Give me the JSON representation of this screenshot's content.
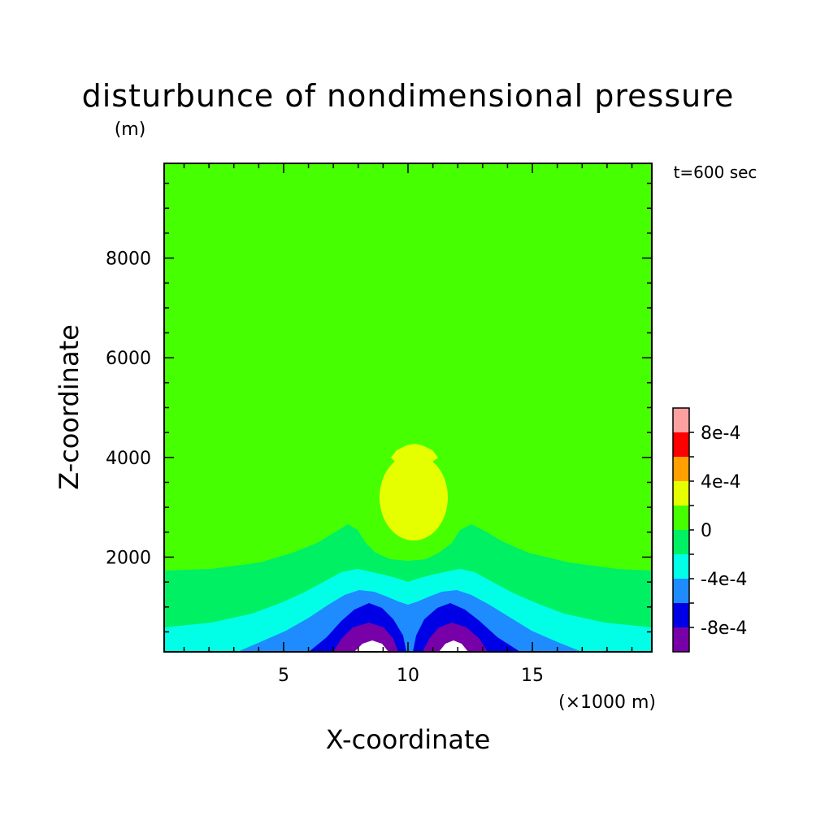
{
  "chart_data": {
    "type": "heatmap",
    "title": "disturbunce of nondimensional pressure",
    "y_unit": "(m)",
    "time_label": "t=600 sec",
    "xlabel": "X-coordinate",
    "ylabel": "Z-coordinate",
    "x_unit": "(×1000 m)",
    "xlim": [
      0.2,
      19.8
    ],
    "ylim": [
      100,
      9900
    ],
    "x_ticks": [
      {
        "value": 5,
        "label": "5"
      },
      {
        "value": 10,
        "label": "10"
      },
      {
        "value": 15,
        "label": "15"
      }
    ],
    "y_ticks": [
      {
        "value": 2000,
        "label": "2000"
      },
      {
        "value": 4000,
        "label": "4000"
      },
      {
        "value": 6000,
        "label": "6000"
      },
      {
        "value": 8000,
        "label": "8000"
      }
    ],
    "colorbar": {
      "levels": [
        -0.001,
        -0.0008,
        -0.0006,
        -0.0004,
        -0.0002,
        0,
        0.0002,
        0.0004,
        0.0006,
        0.0008,
        0.001
      ],
      "colors": [
        "#7800a8",
        "#0000e6",
        "#1e8cff",
        "#00ffe6",
        "#00f064",
        "#46ff00",
        "#e6ff00",
        "#ffa000",
        "#ff0000",
        "#ffa0a0"
      ],
      "tick_labels": [
        {
          "value": -0.0008,
          "label": "-8e-4"
        },
        {
          "value": -0.0004,
          "label": "-4e-4"
        },
        {
          "value": 0,
          "label": "0"
        },
        {
          "value": 0.0004,
          "label": "4e-4"
        },
        {
          "value": 0.0008,
          "label": "8e-4"
        }
      ]
    },
    "field": {
      "background_class": "0 to 2e-4",
      "background_color": "#46ff00",
      "description_of_contours": [
        {
          "level_range": "2e-4 to 4e-4",
          "color": "#e6ff00",
          "center_x": 10.0,
          "center_z": 3050,
          "shape": "ellipse with small cap at z~4100"
        },
        {
          "level_range": "-2e-4 to 0",
          "color": "#00f064",
          "lower_boundary_band": "z from ~600 to ~1700, rising to ~2600 near x=7.5 and x=12.5"
        },
        {
          "level_range": "-4e-4 to -2e-4",
          "color": "#00ffe6",
          "near_surface": true
        },
        {
          "level_range": "-6e-4 to -4e-4",
          "color": "#1e8cff",
          "near_surface": true
        },
        {
          "level_range": "-8e-4 to -6e-4",
          "color": "#0000e6",
          "twin_lobes_x": [
            8.6,
            11.9
          ]
        },
        {
          "level_range": "-1e-3 to -8e-4",
          "color": "#7800a8",
          "twin_lobes_x": [
            8.6,
            11.9
          ]
        },
        {
          "level_range": "below -1e-3",
          "color": "#ffffff",
          "twin_lobes_x": [
            8.6,
            11.9
          ]
        }
      ]
    }
  }
}
